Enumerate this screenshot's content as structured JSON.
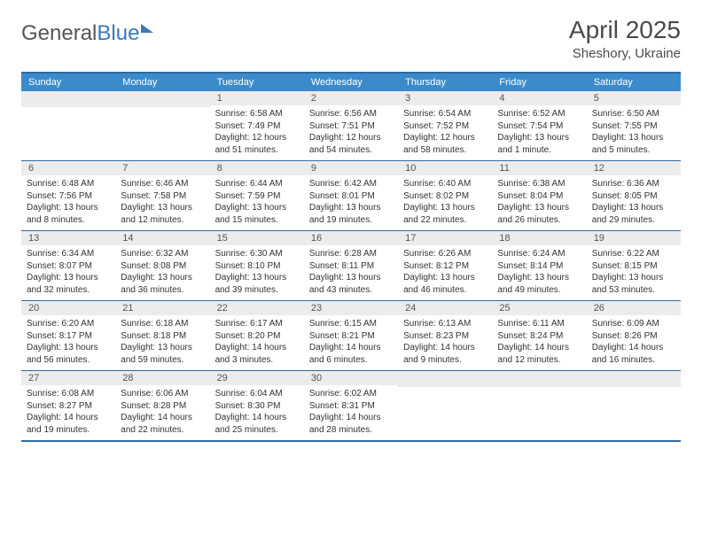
{
  "brand": {
    "part1": "General",
    "part2": "Blue"
  },
  "title": "April 2025",
  "location": "Sheshory, Ukraine",
  "colors": {
    "header_bg": "#3b8bca",
    "header_text": "#ffffff",
    "border": "#2f6aa3",
    "daynum_bg": "#ececec",
    "text": "#333333",
    "title_text": "#4a4a4a"
  },
  "day_names": [
    "Sunday",
    "Monday",
    "Tuesday",
    "Wednesday",
    "Thursday",
    "Friday",
    "Saturday"
  ],
  "weeks": [
    [
      {
        "n": "",
        "sr": "",
        "ss": "",
        "dl": ""
      },
      {
        "n": "",
        "sr": "",
        "ss": "",
        "dl": ""
      },
      {
        "n": "1",
        "sr": "6:58 AM",
        "ss": "7:49 PM",
        "dl": "12 hours and 51 minutes."
      },
      {
        "n": "2",
        "sr": "6:56 AM",
        "ss": "7:51 PM",
        "dl": "12 hours and 54 minutes."
      },
      {
        "n": "3",
        "sr": "6:54 AM",
        "ss": "7:52 PM",
        "dl": "12 hours and 58 minutes."
      },
      {
        "n": "4",
        "sr": "6:52 AM",
        "ss": "7:54 PM",
        "dl": "13 hours and 1 minute."
      },
      {
        "n": "5",
        "sr": "6:50 AM",
        "ss": "7:55 PM",
        "dl": "13 hours and 5 minutes."
      }
    ],
    [
      {
        "n": "6",
        "sr": "6:48 AM",
        "ss": "7:56 PM",
        "dl": "13 hours and 8 minutes."
      },
      {
        "n": "7",
        "sr": "6:46 AM",
        "ss": "7:58 PM",
        "dl": "13 hours and 12 minutes."
      },
      {
        "n": "8",
        "sr": "6:44 AM",
        "ss": "7:59 PM",
        "dl": "13 hours and 15 minutes."
      },
      {
        "n": "9",
        "sr": "6:42 AM",
        "ss": "8:01 PM",
        "dl": "13 hours and 19 minutes."
      },
      {
        "n": "10",
        "sr": "6:40 AM",
        "ss": "8:02 PM",
        "dl": "13 hours and 22 minutes."
      },
      {
        "n": "11",
        "sr": "6:38 AM",
        "ss": "8:04 PM",
        "dl": "13 hours and 26 minutes."
      },
      {
        "n": "12",
        "sr": "6:36 AM",
        "ss": "8:05 PM",
        "dl": "13 hours and 29 minutes."
      }
    ],
    [
      {
        "n": "13",
        "sr": "6:34 AM",
        "ss": "8:07 PM",
        "dl": "13 hours and 32 minutes."
      },
      {
        "n": "14",
        "sr": "6:32 AM",
        "ss": "8:08 PM",
        "dl": "13 hours and 36 minutes."
      },
      {
        "n": "15",
        "sr": "6:30 AM",
        "ss": "8:10 PM",
        "dl": "13 hours and 39 minutes."
      },
      {
        "n": "16",
        "sr": "6:28 AM",
        "ss": "8:11 PM",
        "dl": "13 hours and 43 minutes."
      },
      {
        "n": "17",
        "sr": "6:26 AM",
        "ss": "8:12 PM",
        "dl": "13 hours and 46 minutes."
      },
      {
        "n": "18",
        "sr": "6:24 AM",
        "ss": "8:14 PM",
        "dl": "13 hours and 49 minutes."
      },
      {
        "n": "19",
        "sr": "6:22 AM",
        "ss": "8:15 PM",
        "dl": "13 hours and 53 minutes."
      }
    ],
    [
      {
        "n": "20",
        "sr": "6:20 AM",
        "ss": "8:17 PM",
        "dl": "13 hours and 56 minutes."
      },
      {
        "n": "21",
        "sr": "6:18 AM",
        "ss": "8:18 PM",
        "dl": "13 hours and 59 minutes."
      },
      {
        "n": "22",
        "sr": "6:17 AM",
        "ss": "8:20 PM",
        "dl": "14 hours and 3 minutes."
      },
      {
        "n": "23",
        "sr": "6:15 AM",
        "ss": "8:21 PM",
        "dl": "14 hours and 6 minutes."
      },
      {
        "n": "24",
        "sr": "6:13 AM",
        "ss": "8:23 PM",
        "dl": "14 hours and 9 minutes."
      },
      {
        "n": "25",
        "sr": "6:11 AM",
        "ss": "8:24 PM",
        "dl": "14 hours and 12 minutes."
      },
      {
        "n": "26",
        "sr": "6:09 AM",
        "ss": "8:26 PM",
        "dl": "14 hours and 16 minutes."
      }
    ],
    [
      {
        "n": "27",
        "sr": "6:08 AM",
        "ss": "8:27 PM",
        "dl": "14 hours and 19 minutes."
      },
      {
        "n": "28",
        "sr": "6:06 AM",
        "ss": "8:28 PM",
        "dl": "14 hours and 22 minutes."
      },
      {
        "n": "29",
        "sr": "6:04 AM",
        "ss": "8:30 PM",
        "dl": "14 hours and 25 minutes."
      },
      {
        "n": "30",
        "sr": "6:02 AM",
        "ss": "8:31 PM",
        "dl": "14 hours and 28 minutes."
      },
      {
        "n": "",
        "sr": "",
        "ss": "",
        "dl": ""
      },
      {
        "n": "",
        "sr": "",
        "ss": "",
        "dl": ""
      },
      {
        "n": "",
        "sr": "",
        "ss": "",
        "dl": ""
      }
    ]
  ],
  "labels": {
    "sunrise": "Sunrise:",
    "sunset": "Sunset:",
    "daylight": "Daylight:"
  }
}
